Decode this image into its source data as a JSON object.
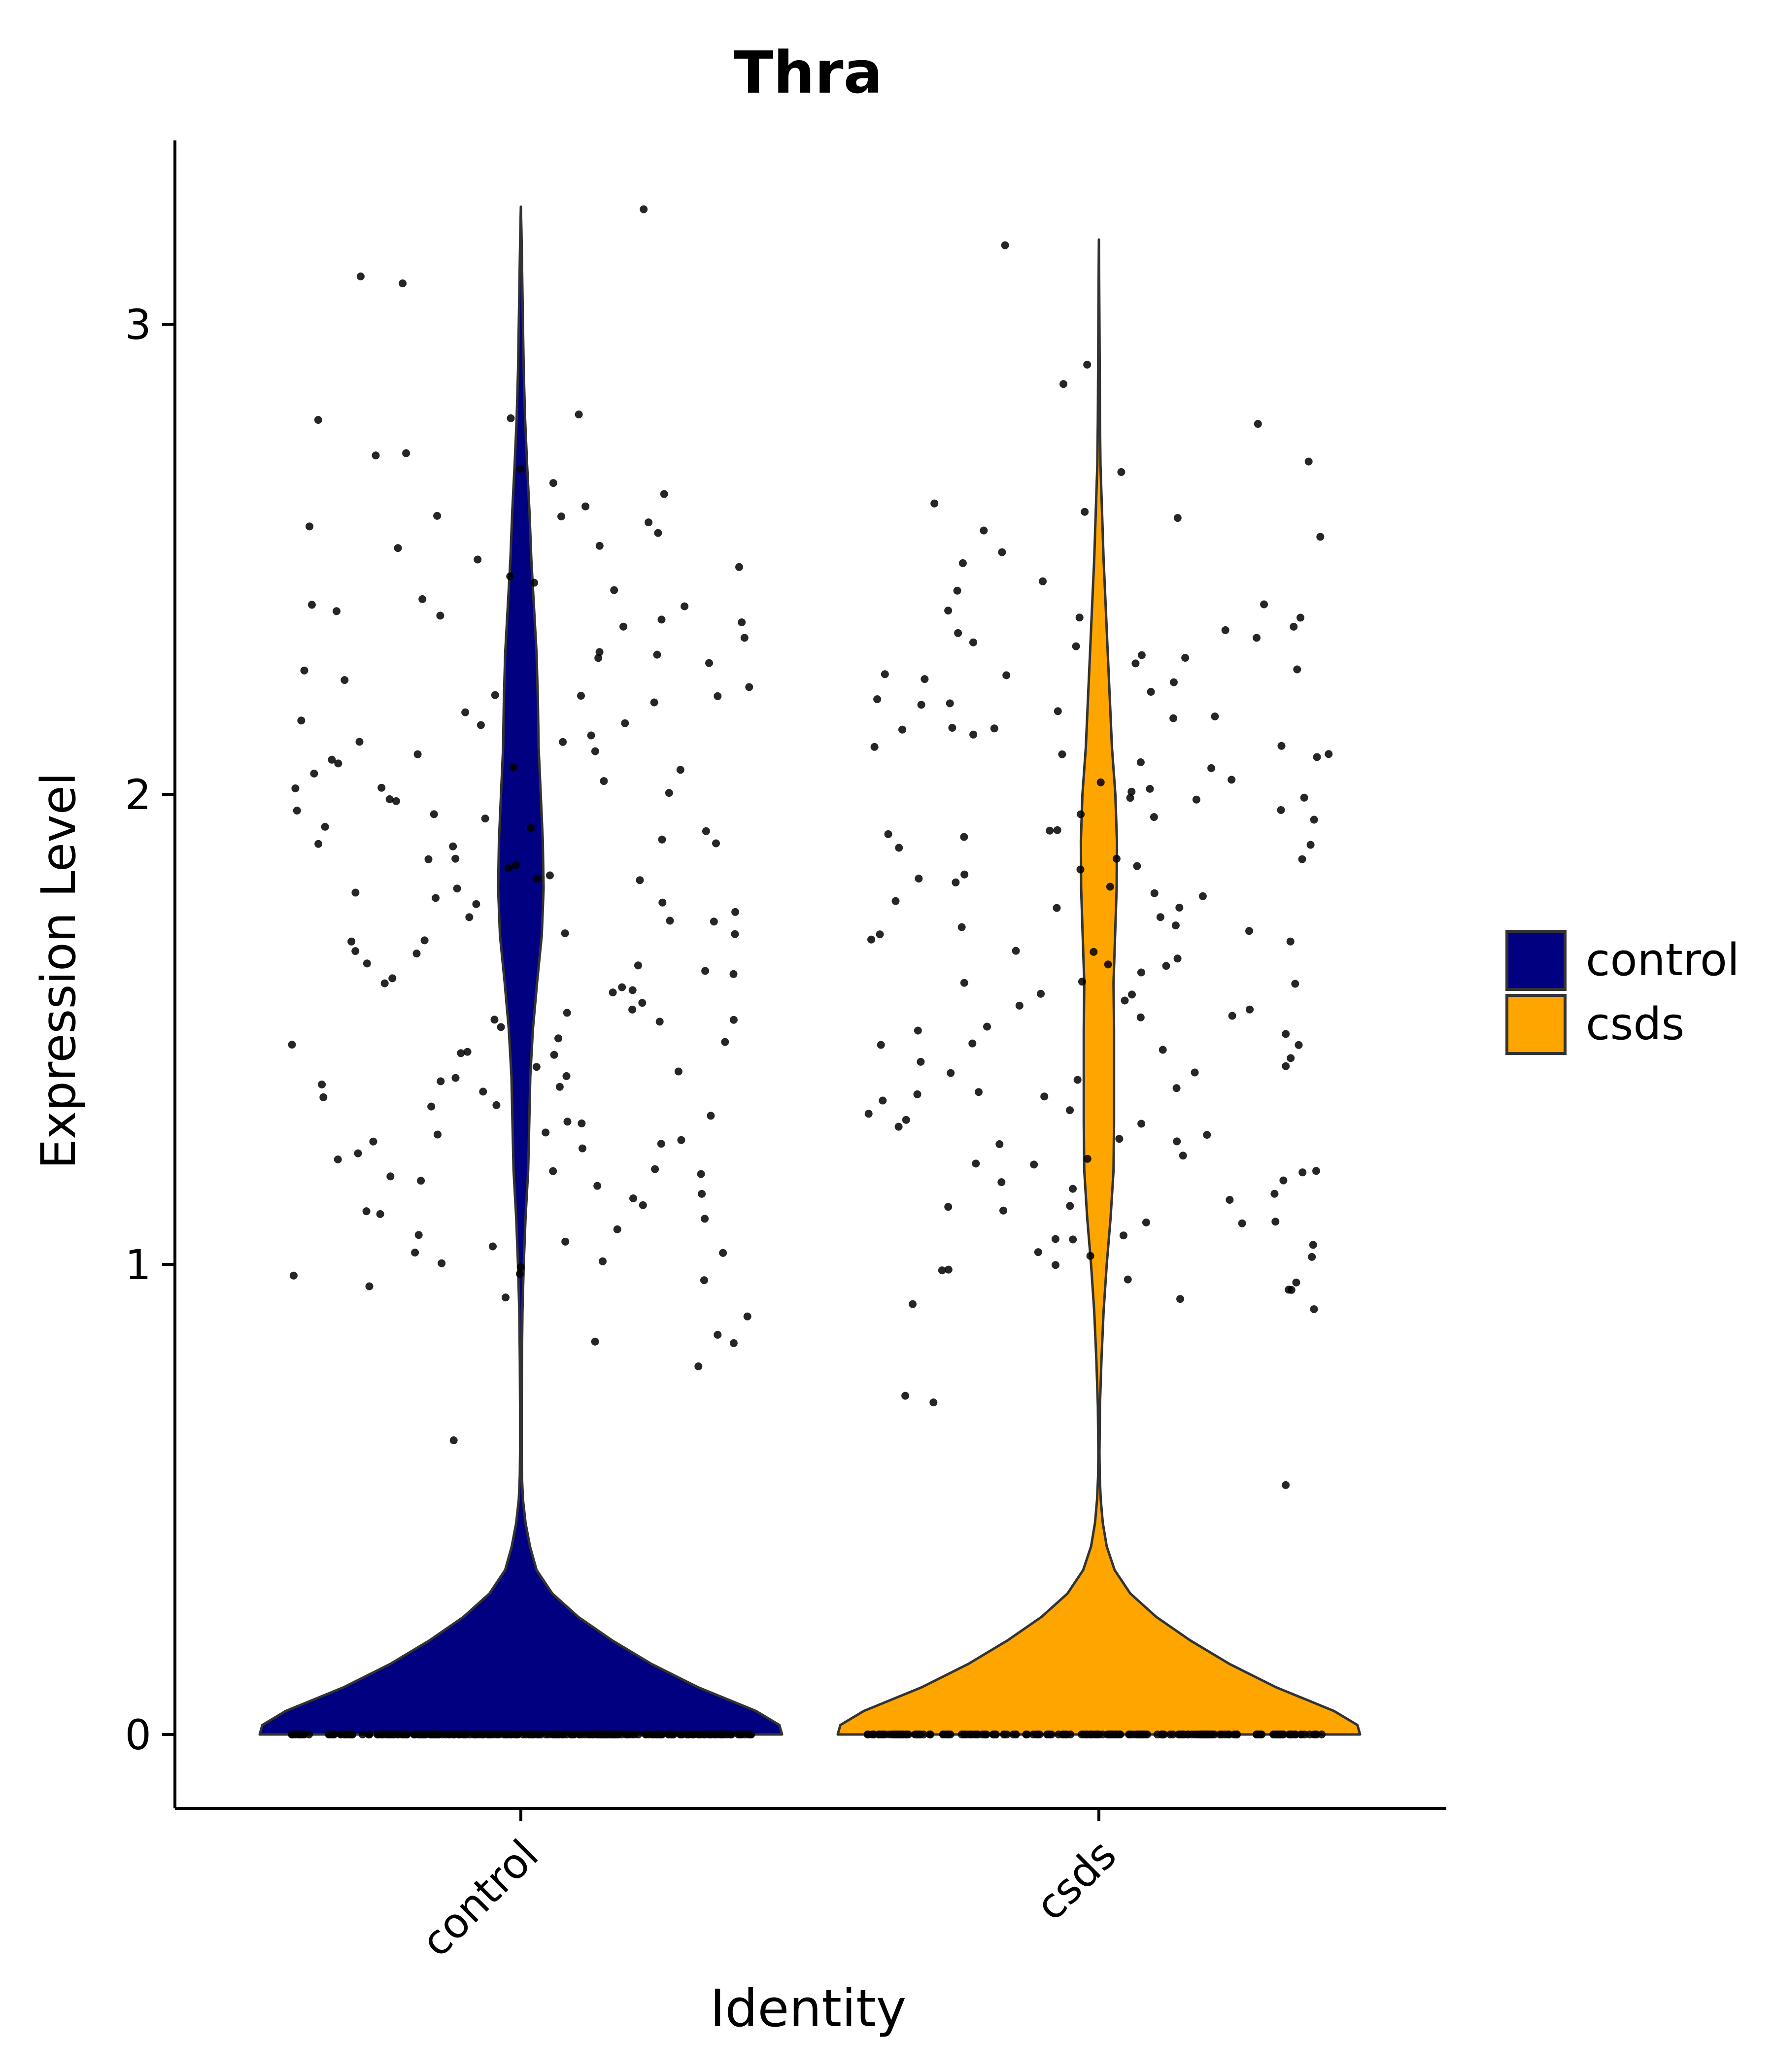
{
  "chart_data": {
    "type": "violin",
    "title": "Thra",
    "xlabel": "Identity",
    "ylabel": "Expression Level",
    "categories": [
      "control",
      "csds"
    ],
    "ylim": [
      -0.16,
      3.4
    ],
    "yticks": [
      0,
      1,
      2,
      3
    ],
    "colors": {
      "control": "#000080",
      "csds": "#FFA500"
    },
    "legend": {
      "position": "right",
      "entries": [
        "control",
        "csds"
      ]
    },
    "violins": [
      {
        "name": "control",
        "max": 3.25,
        "density": [
          [
            0.0,
            1.0
          ],
          [
            0.02,
            0.99
          ],
          [
            0.05,
            0.9
          ],
          [
            0.1,
            0.68
          ],
          [
            0.15,
            0.5
          ],
          [
            0.2,
            0.35
          ],
          [
            0.25,
            0.22
          ],
          [
            0.3,
            0.12
          ],
          [
            0.35,
            0.06
          ],
          [
            0.4,
            0.035
          ],
          [
            0.45,
            0.018
          ],
          [
            0.5,
            0.008
          ],
          [
            0.55,
            0.004
          ],
          [
            0.6,
            0.003
          ],
          [
            0.7,
            0.003
          ],
          [
            0.8,
            0.004
          ],
          [
            0.9,
            0.006
          ],
          [
            1.0,
            0.011
          ],
          [
            1.1,
            0.018
          ],
          [
            1.2,
            0.028
          ],
          [
            1.3,
            0.032
          ],
          [
            1.4,
            0.036
          ],
          [
            1.5,
            0.046
          ],
          [
            1.6,
            0.062
          ],
          [
            1.7,
            0.08
          ],
          [
            1.8,
            0.087
          ],
          [
            1.9,
            0.084
          ],
          [
            2.0,
            0.076
          ],
          [
            2.1,
            0.068
          ],
          [
            2.2,
            0.065
          ],
          [
            2.3,
            0.06
          ],
          [
            2.4,
            0.05
          ],
          [
            2.5,
            0.04
          ],
          [
            2.6,
            0.033
          ],
          [
            2.7,
            0.024
          ],
          [
            2.8,
            0.016
          ],
          [
            2.9,
            0.011
          ],
          [
            3.0,
            0.008
          ],
          [
            3.1,
            0.005
          ],
          [
            3.2,
            0.002
          ],
          [
            3.25,
            0.0
          ]
        ]
      },
      {
        "name": "csds",
        "max": 3.18,
        "density": [
          [
            0.0,
            1.0
          ],
          [
            0.02,
            0.99
          ],
          [
            0.05,
            0.9
          ],
          [
            0.1,
            0.68
          ],
          [
            0.15,
            0.5
          ],
          [
            0.2,
            0.35
          ],
          [
            0.25,
            0.22
          ],
          [
            0.3,
            0.12
          ],
          [
            0.35,
            0.06
          ],
          [
            0.4,
            0.03
          ],
          [
            0.45,
            0.015
          ],
          [
            0.5,
            0.007
          ],
          [
            0.55,
            0.003
          ],
          [
            0.6,
            0.002
          ],
          [
            0.7,
            0.004
          ],
          [
            0.8,
            0.01
          ],
          [
            0.9,
            0.018
          ],
          [
            1.0,
            0.03
          ],
          [
            1.1,
            0.045
          ],
          [
            1.2,
            0.056
          ],
          [
            1.3,
            0.058
          ],
          [
            1.4,
            0.058
          ],
          [
            1.5,
            0.058
          ],
          [
            1.6,
            0.056
          ],
          [
            1.7,
            0.062
          ],
          [
            1.8,
            0.068
          ],
          [
            1.9,
            0.069
          ],
          [
            2.0,
            0.063
          ],
          [
            2.1,
            0.05
          ],
          [
            2.2,
            0.042
          ],
          [
            2.3,
            0.034
          ],
          [
            2.4,
            0.026
          ],
          [
            2.5,
            0.018
          ],
          [
            2.6,
            0.012
          ],
          [
            2.7,
            0.006
          ],
          [
            2.8,
            0.004
          ],
          [
            2.9,
            0.003
          ],
          [
            3.0,
            0.002
          ],
          [
            3.1,
            0.001
          ],
          [
            3.18,
            0.0
          ]
        ]
      }
    ],
    "points": [
      {
        "name": "control",
        "zero_count": 260,
        "nonzero_values": [
          3.25,
          3.11,
          3.09,
          2.8,
          2.8,
          2.8,
          2.73,
          2.72,
          2.69,
          2.67,
          2.64,
          2.61,
          2.6,
          2.59,
          2.58,
          2.56,
          2.55,
          2.53,
          2.52,
          2.5,
          2.48,
          2.46,
          2.45,
          2.43,
          2.42,
          2.41,
          2.4,
          2.39,
          2.38,
          2.37,
          2.36,
          2.35,
          2.33,
          2.31,
          2.3,
          2.29,
          2.28,
          2.26,
          2.25,
          2.23,
          2.22,
          2.21,
          2.2,
          2.19,
          2.18,
          2.16,
          2.15,
          2.14,
          2.13,
          2.12,
          2.11,
          2.1,
          2.09,
          2.08,
          2.07,
          2.06,
          2.05,
          2.04,
          2.03,
          2.02,
          2.01,
          2.0,
          1.99,
          1.98,
          1.97,
          1.96,
          1.95,
          1.94,
          1.93,
          1.92,
          1.91,
          1.9,
          1.89,
          1.88,
          1.87,
          1.86,
          1.85,
          1.84,
          1.83,
          1.82,
          1.81,
          1.8,
          1.79,
          1.78,
          1.77,
          1.76,
          1.75,
          1.74,
          1.73,
          1.72,
          1.71,
          1.7,
          1.69,
          1.68,
          1.67,
          1.66,
          1.65,
          1.64,
          1.63,
          1.62,
          1.61,
          1.6,
          1.59,
          1.58,
          1.57,
          1.56,
          1.55,
          1.54,
          1.53,
          1.52,
          1.51,
          1.5,
          1.49,
          1.48,
          1.47,
          1.46,
          1.45,
          1.44,
          1.43,
          1.42,
          1.41,
          1.4,
          1.39,
          1.38,
          1.37,
          1.36,
          1.35,
          1.34,
          1.33,
          1.32,
          1.31,
          1.3,
          1.29,
          1.28,
          1.27,
          1.26,
          1.25,
          1.24,
          1.23,
          1.22,
          1.21,
          1.2,
          1.19,
          1.18,
          1.17,
          1.16,
          1.15,
          1.14,
          1.13,
          1.12,
          1.11,
          1.1,
          1.08,
          1.06,
          1.05,
          1.04,
          1.03,
          1.02,
          1.01,
          1.0,
          0.99,
          0.98,
          0.97,
          0.96,
          0.95,
          0.93,
          0.88,
          0.86,
          0.84,
          0.83,
          0.78,
          0.63
        ]
      },
      {
        "name": "csds",
        "zero_count": 200,
        "nonzero_values": [
          3.16,
          2.92,
          2.87,
          2.79,
          2.71,
          2.69,
          2.62,
          2.61,
          2.58,
          2.56,
          2.55,
          2.51,
          2.49,
          2.45,
          2.43,
          2.41,
          2.4,
          2.38,
          2.37,
          2.36,
          2.35,
          2.34,
          2.33,
          2.32,
          2.31,
          2.3,
          2.29,
          2.28,
          2.27,
          2.26,
          2.25,
          2.24,
          2.23,
          2.22,
          2.21,
          2.2,
          2.19,
          2.18,
          2.17,
          2.16,
          2.15,
          2.14,
          2.13,
          2.12,
          2.11,
          2.1,
          2.09,
          2.08,
          2.07,
          2.06,
          2.05,
          2.04,
          2.03,
          2.02,
          2.01,
          2.0,
          1.99,
          1.98,
          1.97,
          1.96,
          1.95,
          1.94,
          1.93,
          1.92,
          1.91,
          1.9,
          1.89,
          1.88,
          1.87,
          1.86,
          1.85,
          1.84,
          1.83,
          1.82,
          1.81,
          1.8,
          1.79,
          1.78,
          1.77,
          1.76,
          1.75,
          1.74,
          1.73,
          1.72,
          1.71,
          1.7,
          1.69,
          1.68,
          1.67,
          1.66,
          1.65,
          1.64,
          1.63,
          1.62,
          1.61,
          1.6,
          1.59,
          1.58,
          1.57,
          1.56,
          1.55,
          1.54,
          1.53,
          1.52,
          1.51,
          1.5,
          1.49,
          1.48,
          1.47,
          1.46,
          1.45,
          1.44,
          1.43,
          1.42,
          1.41,
          1.4,
          1.39,
          1.38,
          1.37,
          1.36,
          1.35,
          1.34,
          1.33,
          1.32,
          1.31,
          1.3,
          1.29,
          1.28,
          1.27,
          1.26,
          1.25,
          1.24,
          1.23,
          1.22,
          1.21,
          1.2,
          1.19,
          1.18,
          1.17,
          1.16,
          1.15,
          1.14,
          1.13,
          1.12,
          1.11,
          1.1,
          1.09,
          1.08,
          1.07,
          1.06,
          1.05,
          1.04,
          1.03,
          1.02,
          1.01,
          1.0,
          0.99,
          0.98,
          0.97,
          0.96,
          0.95,
          0.94,
          0.93,
          0.92,
          0.91,
          0.72,
          0.71,
          0.53
        ]
      }
    ]
  }
}
